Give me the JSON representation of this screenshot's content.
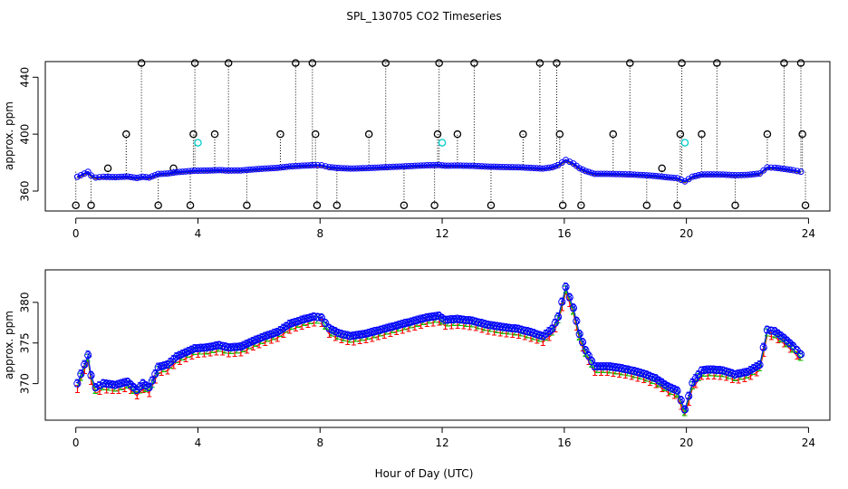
{
  "chart_data": [
    {
      "type": "scatter",
      "title": "SPL_130705  CO2 Timeseries",
      "xlabel": "",
      "ylabel": "approx. ppm",
      "xlim": [
        -1,
        24.7
      ],
      "ylim": [
        346,
        451
      ],
      "xticks": [
        0,
        4,
        8,
        12,
        16,
        20,
        24
      ],
      "yticks": [
        360,
        400,
        440
      ],
      "spike_high": 450,
      "spike_mid": 400,
      "spike_low": 350,
      "cyan_markers": [
        {
          "x": 4.0,
          "y": 394
        },
        {
          "x": 12.0,
          "y": 394
        },
        {
          "x": 19.95,
          "y": 394
        }
      ],
      "spikes": [
        {
          "x": 0.0,
          "y": 350
        },
        {
          "x": 0.5,
          "y": 350
        },
        {
          "x": 1.05,
          "y": 376
        },
        {
          "x": 1.65,
          "y": 400
        },
        {
          "x": 2.15,
          "y": 450
        },
        {
          "x": 2.7,
          "y": 350
        },
        {
          "x": 3.2,
          "y": 376
        },
        {
          "x": 3.75,
          "y": 350
        },
        {
          "x": 3.85,
          "y": 400
        },
        {
          "x": 3.9,
          "y": 450
        },
        {
          "x": 4.55,
          "y": 400
        },
        {
          "x": 5.0,
          "y": 450
        },
        {
          "x": 5.6,
          "y": 350
        },
        {
          "x": 6.7,
          "y": 400
        },
        {
          "x": 7.2,
          "y": 450
        },
        {
          "x": 7.75,
          "y": 450
        },
        {
          "x": 7.85,
          "y": 400
        },
        {
          "x": 7.9,
          "y": 350
        },
        {
          "x": 8.55,
          "y": 350
        },
        {
          "x": 9.6,
          "y": 400
        },
        {
          "x": 10.15,
          "y": 450
        },
        {
          "x": 10.75,
          "y": 350
        },
        {
          "x": 11.75,
          "y": 350
        },
        {
          "x": 11.85,
          "y": 400
        },
        {
          "x": 11.9,
          "y": 450
        },
        {
          "x": 12.5,
          "y": 400
        },
        {
          "x": 13.05,
          "y": 450
        },
        {
          "x": 13.6,
          "y": 350
        },
        {
          "x": 14.65,
          "y": 400
        },
        {
          "x": 15.2,
          "y": 450
        },
        {
          "x": 15.75,
          "y": 450
        },
        {
          "x": 15.85,
          "y": 400
        },
        {
          "x": 15.95,
          "y": 350
        },
        {
          "x": 16.55,
          "y": 350
        },
        {
          "x": 17.6,
          "y": 400
        },
        {
          "x": 18.15,
          "y": 450
        },
        {
          "x": 18.7,
          "y": 350
        },
        {
          "x": 19.2,
          "y": 376
        },
        {
          "x": 19.7,
          "y": 350
        },
        {
          "x": 19.8,
          "y": 400
        },
        {
          "x": 19.85,
          "y": 450
        },
        {
          "x": 20.5,
          "y": 400
        },
        {
          "x": 21.0,
          "y": 450
        },
        {
          "x": 21.6,
          "y": 350
        },
        {
          "x": 22.65,
          "y": 400
        },
        {
          "x": 23.2,
          "y": 450
        },
        {
          "x": 23.75,
          "y": 450
        },
        {
          "x": 23.8,
          "y": 400
        },
        {
          "x": 23.9,
          "y": 350
        }
      ]
    },
    {
      "type": "line",
      "title": "",
      "xlabel": "Hour of Day (UTC)",
      "ylabel": "approx. ppm",
      "xlim": [
        -1,
        24.7
      ],
      "ylim": [
        365.5,
        384
      ],
      "xticks": [
        0,
        4,
        8,
        12,
        16,
        20,
        24
      ],
      "yticks": [
        370,
        375,
        380
      ],
      "series": [
        {
          "name": "1",
          "color": "#ff0000",
          "offset": -0.7
        },
        {
          "name": "2",
          "color": "#00cc00",
          "offset": -0.35
        },
        {
          "name": "3",
          "color": "#0000ff",
          "offset": 0
        }
      ],
      "x": [
        0.05,
        0.4,
        0.5,
        0.65,
        0.9,
        1.3,
        1.7,
        2.0,
        2.2,
        2.4,
        2.7,
        3.0,
        3.3,
        3.6,
        3.9,
        4.3,
        4.7,
        5.0,
        5.4,
        5.8,
        6.2,
        6.6,
        7.0,
        7.4,
        7.8,
        8.05,
        8.3,
        8.6,
        9.0,
        9.5,
        10.0,
        10.5,
        11.0,
        11.5,
        11.9,
        12.1,
        12.5,
        13.0,
        13.5,
        14.0,
        14.5,
        14.9,
        15.3,
        15.6,
        15.8,
        16.05,
        16.3,
        16.5,
        16.7,
        17.0,
        17.4,
        17.8,
        18.2,
        18.6,
        19.0,
        19.4,
        19.7,
        19.95,
        20.2,
        20.5,
        20.8,
        21.2,
        21.6,
        22.0,
        22.4,
        22.65,
        22.9,
        23.2,
        23.5,
        23.75
      ],
      "values": [
        370,
        373.5,
        371,
        369.5,
        370,
        369.8,
        370.2,
        369.2,
        370,
        369.5,
        372,
        372.3,
        373.3,
        373.8,
        374.3,
        374.4,
        374.7,
        374.4,
        374.5,
        375.2,
        375.8,
        376.3,
        377.3,
        377.8,
        378.2,
        378.1,
        376.8,
        376.2,
        375.8,
        376.1,
        376.6,
        377.1,
        377.6,
        378.1,
        378.3,
        377.8,
        377.9,
        377.7,
        377.2,
        376.9,
        376.7,
        376.3,
        375.8,
        376.7,
        378.2,
        381.9,
        379.3,
        376.1,
        374.1,
        372.1,
        372.1,
        371.9,
        371.6,
        371.2,
        370.6,
        369.6,
        369.1,
        366.8,
        370.1,
        371.6,
        371.7,
        371.6,
        371.1,
        371.4,
        372.3,
        376.6,
        376.4,
        375.6,
        374.6,
        373.6
      ]
    }
  ]
}
